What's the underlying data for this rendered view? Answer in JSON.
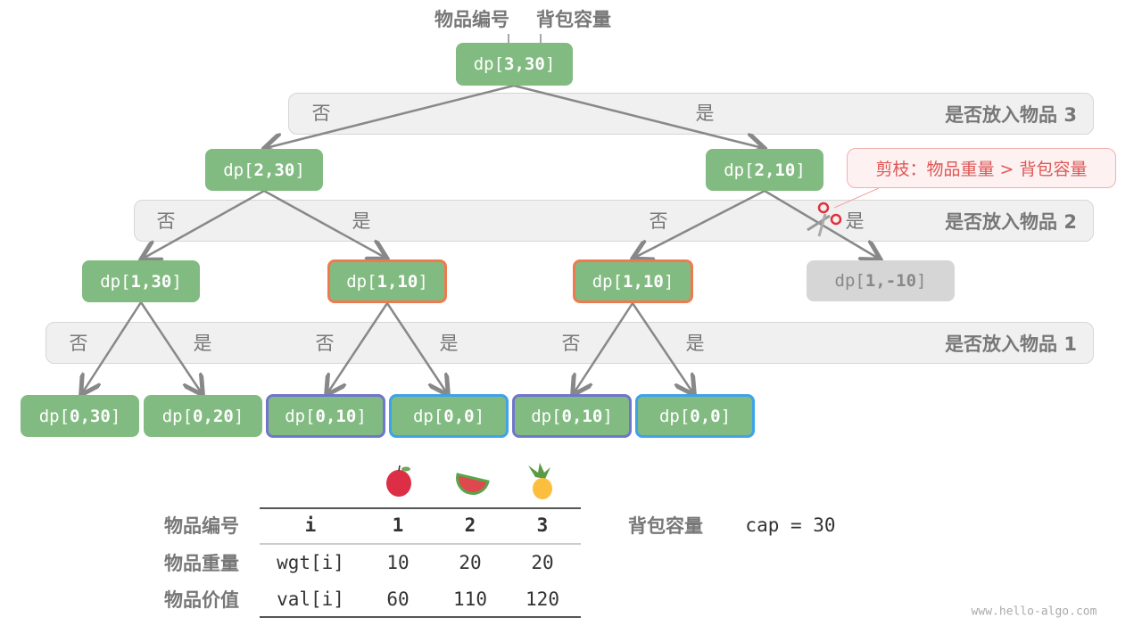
{
  "top_labels": {
    "item_index": "物品编号",
    "capacity": "背包容量"
  },
  "node_prefix": "dp[",
  "node_suffix": "]",
  "nodes": [
    {
      "args": "3,30",
      "state": "normal"
    },
    {
      "args": "2,30",
      "state": "normal"
    },
    {
      "args": "2,10",
      "state": "normal"
    },
    {
      "args": "1,30",
      "state": "normal"
    },
    {
      "args": "1,10",
      "state": "overlapping"
    },
    {
      "args": "1,10",
      "state": "overlapping"
    },
    {
      "args": "1,-10",
      "state": "pruned"
    },
    {
      "args": "0,30",
      "state": "normal"
    },
    {
      "args": "0,20",
      "state": "normal"
    },
    {
      "args": "0,10",
      "state": "overlapping"
    },
    {
      "args": "0,0",
      "state": "overlapping"
    },
    {
      "args": "0,10",
      "state": "overlapping"
    },
    {
      "args": "0,0",
      "state": "overlapping"
    }
  ],
  "bands": [
    {
      "title": "是否放入物品 3",
      "choices": [
        "否",
        "是"
      ]
    },
    {
      "title": "是否放入物品 2",
      "choices": [
        "否",
        "是",
        "否",
        "是"
      ]
    },
    {
      "title": "是否放入物品 1",
      "choices": [
        "否",
        "是",
        "否",
        "是",
        "否",
        "是"
      ]
    }
  ],
  "prune_callout": "剪枝：物品重量 > 背包容量",
  "icons": {
    "prune": "scissors-icon",
    "fruits": [
      "apple-icon",
      "watermelon-icon",
      "pineapple-icon"
    ]
  },
  "colors": {
    "node": "#82bb81",
    "pruned": "#d6d6d6",
    "overlap_orange": "#f07a50",
    "overlap_purple": "#7076cc",
    "overlap_blue": "#3ea3e8",
    "callout_text": "#e05555"
  },
  "table": {
    "row_labels": [
      "物品编号",
      "物品重量",
      "物品价值"
    ],
    "rows": [
      [
        "i",
        "1",
        "2",
        "3"
      ],
      [
        "wgt[i]",
        "10",
        "20",
        "20"
      ],
      [
        "val[i]",
        "60",
        "110",
        "120"
      ]
    ]
  },
  "capacity": {
    "label": "背包容量",
    "value": "cap = 30"
  },
  "watermark": "www.hello-algo.com"
}
